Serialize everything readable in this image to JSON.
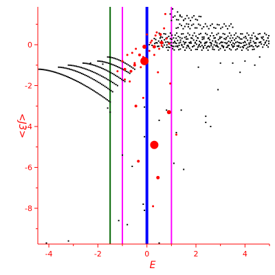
{
  "chart_data": {
    "type": "scatter",
    "title": "",
    "xlabel": "E",
    "ylabel": "<J3>",
    "xlim": [
      -4.45,
      5.0
    ],
    "ylim": [
      -9.75,
      1.85
    ],
    "xticks": [
      -4,
      -2,
      0,
      2,
      4
    ],
    "yticks": [
      0,
      -2,
      -4,
      -6,
      -8
    ],
    "grid": false,
    "colors": {
      "axes": "#ff0000",
      "black_points": "#000000",
      "red_points": "#ff0000",
      "line_green": "#006400",
      "line_magenta": "#ff00ff",
      "line_blue": "#0000ff"
    },
    "vertical_lines": [
      {
        "x": -1.5,
        "color": "#006400"
      },
      {
        "x": -1.0,
        "color": "#ff00ff"
      },
      {
        "x": 0.0,
        "color": "#0000ff"
      },
      {
        "x": 1.0,
        "color": "#ff00ff"
      }
    ],
    "black_branches": [
      {
        "x0": -4.4,
        "x1": -1.5,
        "y0": -1.2,
        "y1": -2.8,
        "n": 50
      },
      {
        "x0": -3.6,
        "x1": -1.4,
        "y0": -1.1,
        "y1": -2.3,
        "n": 36
      },
      {
        "x0": -3.2,
        "x1": -1.2,
        "y0": -1.0,
        "y1": -2.0,
        "n": 32
      },
      {
        "x0": -2.6,
        "x1": -0.9,
        "y0": -0.9,
        "y1": -1.8,
        "n": 28
      },
      {
        "x0": -2.0,
        "x1": -0.7,
        "y0": -0.8,
        "y1": -1.4,
        "n": 22
      },
      {
        "x0": -1.6,
        "x1": -0.5,
        "y0": -0.6,
        "y1": -1.2,
        "n": 18
      }
    ],
    "black_bands": [
      {
        "x0": 0.1,
        "x1": 5.0,
        "y": 0.0,
        "n": 90
      },
      {
        "x0": 0.3,
        "x1": 5.0,
        "y": 0.2,
        "n": 80
      },
      {
        "x0": 0.5,
        "x1": 5.0,
        "y": 0.45,
        "n": 70
      },
      {
        "x0": 0.8,
        "x1": 4.5,
        "y": -0.15,
        "n": 60
      },
      {
        "x0": 1.2,
        "x1": 3.5,
        "y": 0.9,
        "n": 34
      },
      {
        "x0": 1.0,
        "x1": 2.2,
        "y": 1.3,
        "n": 18
      }
    ],
    "black_scatter": [
      {
        "x": 1.05,
        "y": 1.75
      },
      {
        "x": 1.25,
        "y": 1.6
      },
      {
        "x": 1.35,
        "y": 1.45
      },
      {
        "x": 0.95,
        "y": 1.5
      },
      {
        "x": 1.5,
        "y": 1.2
      },
      {
        "x": 1.7,
        "y": 1.0
      },
      {
        "x": 2.5,
        "y": 0.3
      },
      {
        "x": 3.0,
        "y": -0.9
      },
      {
        "x": 3.5,
        "y": -0.9
      },
      {
        "x": 4.0,
        "y": -0.8
      },
      {
        "x": 4.4,
        "y": -1.0
      },
      {
        "x": 3.8,
        "y": -1.35
      },
      {
        "x": 2.9,
        "y": -2.2
      },
      {
        "x": 4.6,
        "y": -0.6
      },
      {
        "x": 2.1,
        "y": -1.1
      },
      {
        "x": 2.4,
        "y": -3.5
      },
      {
        "x": 2.4,
        "y": -3.8
      },
      {
        "x": 2.6,
        "y": -4.0
      },
      {
        "x": 1.4,
        "y": -3.2
      },
      {
        "x": 1.2,
        "y": -4.3
      },
      {
        "x": 1.1,
        "y": -5.8
      },
      {
        "x": 1.5,
        "y": -6.1
      },
      {
        "x": 0.8,
        "y": -3.2
      },
      {
        "x": -0.6,
        "y": -5.95
      },
      {
        "x": -1.0,
        "y": -5.4
      },
      {
        "x": -1.15,
        "y": -8.6
      },
      {
        "x": -0.8,
        "y": -8.8
      },
      {
        "x": -0.15,
        "y": -7.8
      },
      {
        "x": -0.1,
        "y": -8.1
      },
      {
        "x": -0.1,
        "y": -3.05
      },
      {
        "x": -0.1,
        "y": -4.5
      },
      {
        "x": 0.5,
        "y": -3.7
      },
      {
        "x": -2.3,
        "y": -0.9
      },
      {
        "x": -1.8,
        "y": -0.95
      },
      {
        "x": -1.6,
        "y": -3.1
      },
      {
        "x": -1.5,
        "y": -3.3
      },
      {
        "x": -4.1,
        "y": -9.7
      },
      {
        "x": -3.2,
        "y": -9.6
      },
      {
        "x": 0.5,
        "y": -9.7
      }
    ],
    "red_points": [
      {
        "x": -0.1,
        "y": -0.8,
        "size": 6
      },
      {
        "x": 0.3,
        "y": -4.9,
        "size": 6
      },
      {
        "x": -0.1,
        "y": -0.1,
        "size": 3
      },
      {
        "x": 0.9,
        "y": -3.3,
        "size": 3
      },
      {
        "x": 0.6,
        "y": 0.1,
        "size": 2.5
      },
      {
        "x": 0.45,
        "y": -6.5,
        "size": 2.5
      },
      {
        "x": -0.35,
        "y": -5.7,
        "size": 2
      },
      {
        "x": -0.45,
        "y": -3.0,
        "size": 2
      },
      {
        "x": 0.3,
        "y": -0.1,
        "size": 2.5
      },
      {
        "x": 0.55,
        "y": 0.5,
        "size": 2
      },
      {
        "x": -0.9,
        "y": -1.2,
        "size": 2
      },
      {
        "x": -0.5,
        "y": -1.0,
        "size": 2
      },
      {
        "x": -0.65,
        "y": -1.3,
        "size": 2
      },
      {
        "x": -0.3,
        "y": -0.5,
        "size": 2
      },
      {
        "x": -0.8,
        "y": -0.5,
        "size": 1.5
      },
      {
        "x": -0.6,
        "y": -0.4,
        "size": 1.5
      },
      {
        "x": -1.0,
        "y": -0.8,
        "size": 1.5
      },
      {
        "x": -1.2,
        "y": -1.3,
        "size": 1.5
      },
      {
        "x": -0.7,
        "y": -1.8,
        "size": 1.5
      },
      {
        "x": -0.5,
        "y": -0.9,
        "size": 1.5
      },
      {
        "x": -0.25,
        "y": -1.1,
        "size": 1.5
      },
      {
        "x": 0.2,
        "y": 0.2,
        "size": 1.5
      },
      {
        "x": 0.4,
        "y": 0.6,
        "size": 1.5
      },
      {
        "x": 0.5,
        "y": -0.2,
        "size": 1.5
      },
      {
        "x": 0.7,
        "y": 0.8,
        "size": 1.5
      },
      {
        "x": 0.8,
        "y": 0.3,
        "size": 1.5
      },
      {
        "x": 0.75,
        "y": 1.5,
        "size": 1.5
      },
      {
        "x": 0.1,
        "y": -0.3,
        "size": 1.5
      },
      {
        "x": 0.35,
        "y": 0.45,
        "size": 1.5
      },
      {
        "x": -0.15,
        "y": -0.6,
        "size": 1.5
      },
      {
        "x": 0.6,
        "y": -0.05,
        "size": 1.5
      },
      {
        "x": 0.9,
        "y": 0.05,
        "size": 1.5
      },
      {
        "x": 0.0,
        "y": 0.5,
        "size": 1.5
      },
      {
        "x": 0.15,
        "y": 0.1,
        "size": 1.5
      },
      {
        "x": -0.45,
        "y": -0.2,
        "size": 1.5
      },
      {
        "x": 0.3,
        "y": -0.5,
        "size": 1.5
      },
      {
        "x": -0.15,
        "y": -2.6,
        "size": 1.5
      },
      {
        "x": 0.95,
        "y": -1.9,
        "size": 1.5
      },
      {
        "x": 1.2,
        "y": -4.4,
        "size": 1.5
      },
      {
        "x": 0.25,
        "y": -7.9,
        "size": 1.5
      },
      {
        "x": 0.45,
        "y": -1.35,
        "size": 1.5
      },
      {
        "x": -0.9,
        "y": -1.7,
        "size": 1.5
      }
    ]
  }
}
